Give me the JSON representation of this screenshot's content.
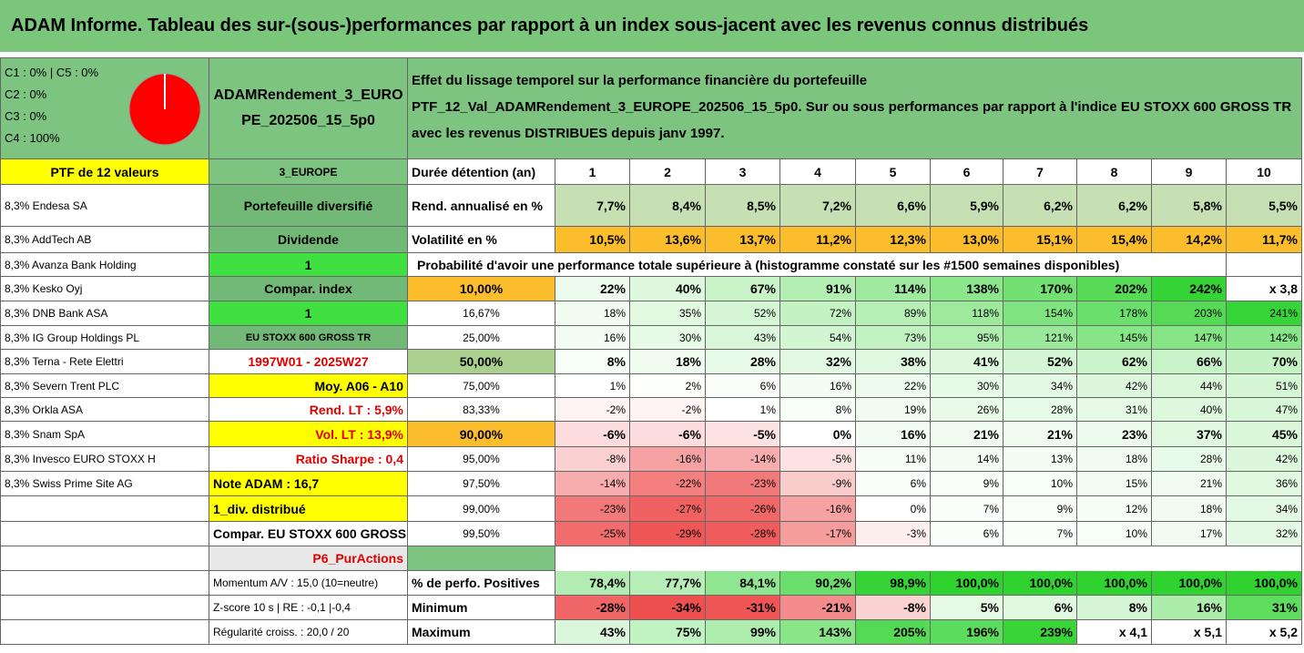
{
  "title": "ADAM Informe. Tableau des sur-(sous-)performances par rapport à un index sous-jacent avec les revenus connus distribués",
  "header": {
    "legend": [
      "C1 : 0% | C5 : 0%",
      "C2 : 0%",
      "C3 : 0%",
      "C4 : 100%"
    ],
    "portfolio": "ADAMRendement_3_EUROPE_202506_15_5p0",
    "description": [
      "Effet du lissage temporel sur la performance financière du portefeuille",
      "PTF_12_Val_ADAMRendement_3_EUROPE_202506_15_5p0. Sur ou sous performances par rapport à l'indice EU STOXX 600 GROSS TR avec les revenus DISTRIBUES depuis janv 1997."
    ]
  },
  "table": {
    "rows": [
      [
        "PTF de 12 valeurs",
        "3_EUROPE",
        "Durée détention (an)",
        "1",
        "2",
        "3",
        "4",
        "5",
        "6",
        "7",
        "8",
        "9",
        "10"
      ],
      [
        "8,3% Endesa SA",
        "Portefeuille diversifié",
        "Rend. annualisé en %",
        "7,7%",
        "8,4%",
        "8,5%",
        "7,2%",
        "6,6%",
        "5,9%",
        "6,2%",
        "6,2%",
        "5,8%",
        "5,5%"
      ],
      [
        "8,3% AddTech AB",
        "Dividende",
        "Volatilité en %",
        "10,5%",
        "13,6%",
        "13,7%",
        "11,2%",
        "12,3%",
        "13,0%",
        "15,1%",
        "15,4%",
        "14,2%",
        "11,7%"
      ],
      [
        "8,3% Avanza Bank Holding",
        "1",
        "Probabilité d'avoir une performance totale supérieure à (histogramme constaté sur les #1500 semaines disponibles)"
      ],
      [
        "8,3% Kesko Oyj",
        "Compar. index",
        "10,00%",
        "22%",
        "40%",
        "67%",
        "91%",
        "114%",
        "138%",
        "170%",
        "202%",
        "242%",
        "x 3,8"
      ],
      [
        "8,3% DNB Bank ASA",
        "1",
        "16,67%",
        "18%",
        "35%",
        "52%",
        "72%",
        "89%",
        "118%",
        "154%",
        "178%",
        "203%",
        "241%"
      ],
      [
        "8,3% IG Group Holdings PL",
        "EU STOXX 600 GROSS TR",
        "25,00%",
        "16%",
        "30%",
        "43%",
        "54%",
        "73%",
        "95%",
        "121%",
        "145%",
        "147%",
        "142%"
      ],
      [
        "8,3% Terna - Rete Elettri",
        "1997W01 - 2025W27",
        "50,00%",
        "8%",
        "18%",
        "28%",
        "32%",
        "38%",
        "41%",
        "52%",
        "62%",
        "66%",
        "70%"
      ],
      [
        "8,3% Severn Trent PLC",
        "Moy. A06 - A10",
        "75,00%",
        "1%",
        "2%",
        "6%",
        "16%",
        "22%",
        "30%",
        "34%",
        "42%",
        "44%",
        "51%"
      ],
      [
        "8,3% Orkla ASA",
        "Rend. LT : 5,9%",
        "83,33%",
        "-2%",
        "-2%",
        "1%",
        "8%",
        "19%",
        "26%",
        "28%",
        "31%",
        "40%",
        "47%"
      ],
      [
        "8,3% Snam SpA",
        "Vol. LT : 13,9%",
        "90,00%",
        "-6%",
        "-6%",
        "-5%",
        "0%",
        "16%",
        "21%",
        "21%",
        "23%",
        "37%",
        "45%"
      ],
      [
        "8,3% Invesco EURO STOXX H",
        "Ratio Sharpe : 0,4",
        "95,00%",
        "-8%",
        "-16%",
        "-14%",
        "-5%",
        "11%",
        "14%",
        "13%",
        "18%",
        "28%",
        "42%"
      ],
      [
        "8,3% Swiss Prime Site AG",
        "Note ADAM : 16,7",
        "97,50%",
        "-14%",
        "-22%",
        "-23%",
        "-9%",
        "6%",
        "9%",
        "10%",
        "15%",
        "21%",
        "36%"
      ],
      [
        null,
        "1_div. distribué",
        "99,00%",
        "-23%",
        "-27%",
        "-26%",
        "-16%",
        "0%",
        "7%",
        "9%",
        "12%",
        "18%",
        "34%"
      ],
      [
        null,
        "Compar. EU STOXX 600 GROSS TR",
        "99,50%",
        "-25%",
        "-29%",
        "-28%",
        "-17%",
        "-3%",
        "6%",
        "7%",
        "10%",
        "17%",
        "32%"
      ],
      [
        null,
        "P6_PurActions"
      ],
      [
        null,
        "Momentum A/V : 15,0 (10=neutre)",
        "% de perfo. Positives",
        "78,4%",
        "77,7%",
        "84,1%",
        "90,2%",
        "98,9%",
        "100,0%",
        "100,0%",
        "100,0%",
        "100,0%",
        "100,0%"
      ],
      [
        null,
        "Z-score 10 s | RE : -0,1 |-0,4",
        "Minimum",
        "-28%",
        "-34%",
        "-31%",
        "-21%",
        "-8%",
        "5%",
        "6%",
        "8%",
        "16%",
        "31%"
      ],
      [
        null,
        "Régularité croiss. : 20,0 / 20",
        "Maximum",
        "43%",
        "75%",
        "99%",
        "143%",
        "205%",
        "196%",
        "239%",
        "x 4,1",
        "x 5,1",
        "x 5,2"
      ]
    ]
  }
}
